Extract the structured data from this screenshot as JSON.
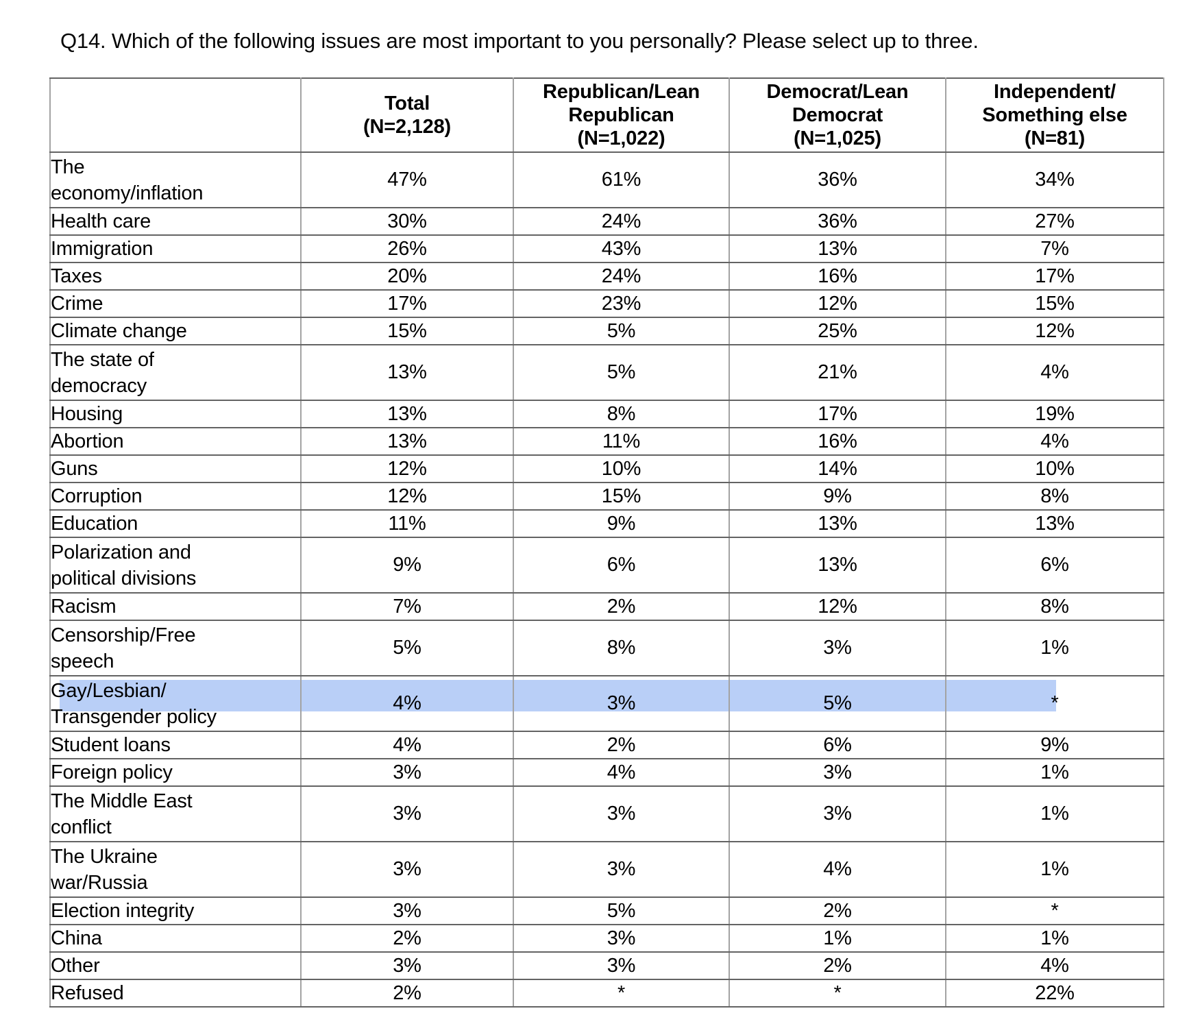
{
  "title": "Q14. Which of the following issues are most important to you personally? Please select up to three.",
  "highlight_color": "#b9cff7",
  "table": {
    "columns": [
      {
        "label": ""
      },
      {
        "label": "Total\n(N=2,128)"
      },
      {
        "label": "Republican/Lean\nRepublican\n(N=1,022)"
      },
      {
        "label": "Democrat/Lean\nDemocrat\n(N=1,025)"
      },
      {
        "label": "Independent/\nSomething else\n(N=81)"
      }
    ],
    "rows": [
      {
        "label": "The\neconomy/inflation",
        "values": [
          "47%",
          "61%",
          "36%",
          "34%"
        ],
        "two_line": true,
        "highlighted": false
      },
      {
        "label": "Health care",
        "values": [
          "30%",
          "24%",
          "36%",
          "27%"
        ],
        "two_line": false,
        "highlighted": false
      },
      {
        "label": "Immigration",
        "values": [
          "26%",
          "43%",
          "13%",
          "7%"
        ],
        "two_line": false,
        "highlighted": false
      },
      {
        "label": "Taxes",
        "values": [
          "20%",
          "24%",
          "16%",
          "17%"
        ],
        "two_line": false,
        "highlighted": false
      },
      {
        "label": "Crime",
        "values": [
          "17%",
          "23%",
          "12%",
          "15%"
        ],
        "two_line": false,
        "highlighted": false
      },
      {
        "label": "Climate change",
        "values": [
          "15%",
          "5%",
          "25%",
          "12%"
        ],
        "two_line": false,
        "highlighted": false
      },
      {
        "label": "The state of\ndemocracy",
        "values": [
          "13%",
          "5%",
          "21%",
          "4%"
        ],
        "two_line": true,
        "highlighted": false
      },
      {
        "label": "Housing",
        "values": [
          "13%",
          "8%",
          "17%",
          "19%"
        ],
        "two_line": false,
        "highlighted": false
      },
      {
        "label": "Abortion",
        "values": [
          "13%",
          "11%",
          "16%",
          "4%"
        ],
        "two_line": false,
        "highlighted": false
      },
      {
        "label": "Guns",
        "values": [
          "12%",
          "10%",
          "14%",
          "10%"
        ],
        "two_line": false,
        "highlighted": false
      },
      {
        "label": "Corruption",
        "values": [
          "12%",
          "15%",
          "9%",
          "8%"
        ],
        "two_line": false,
        "highlighted": false
      },
      {
        "label": "Education",
        "values": [
          "11%",
          "9%",
          "13%",
          "13%"
        ],
        "two_line": false,
        "highlighted": false
      },
      {
        "label": "Polarization and\npolitical divisions",
        "values": [
          "9%",
          "6%",
          "13%",
          "6%"
        ],
        "two_line": true,
        "highlighted": false
      },
      {
        "label": "Racism",
        "values": [
          "7%",
          "2%",
          "12%",
          "8%"
        ],
        "two_line": false,
        "highlighted": false
      },
      {
        "label": "Censorship/Free\nspeech",
        "values": [
          "5%",
          "8%",
          "3%",
          "1%"
        ],
        "two_line": true,
        "highlighted": false
      },
      {
        "label": "Gay/Lesbian/\nTransgender policy",
        "values": [
          "4%",
          "3%",
          "5%",
          "*"
        ],
        "two_line": true,
        "highlighted": true
      },
      {
        "label": "Student loans",
        "values": [
          "4%",
          "2%",
          "6%",
          "9%"
        ],
        "two_line": false,
        "highlighted": false
      },
      {
        "label": "Foreign policy",
        "values": [
          "3%",
          "4%",
          "3%",
          "1%"
        ],
        "two_line": false,
        "highlighted": false
      },
      {
        "label": "The Middle East\nconflict",
        "values": [
          "3%",
          "3%",
          "3%",
          "1%"
        ],
        "two_line": true,
        "highlighted": false
      },
      {
        "label": "The Ukraine\nwar/Russia",
        "values": [
          "3%",
          "3%",
          "4%",
          "1%"
        ],
        "two_line": true,
        "highlighted": false
      },
      {
        "label": "Election integrity",
        "values": [
          "3%",
          "5%",
          "2%",
          "*"
        ],
        "two_line": false,
        "highlighted": false
      },
      {
        "label": "China",
        "values": [
          "2%",
          "3%",
          "1%",
          "1%"
        ],
        "two_line": false,
        "highlighted": false
      },
      {
        "label": "Other",
        "values": [
          "3%",
          "3%",
          "2%",
          "4%"
        ],
        "two_line": false,
        "highlighted": false
      },
      {
        "label": "Refused",
        "values": [
          "2%",
          "*",
          "*",
          "22%"
        ],
        "two_line": false,
        "highlighted": false
      }
    ]
  }
}
